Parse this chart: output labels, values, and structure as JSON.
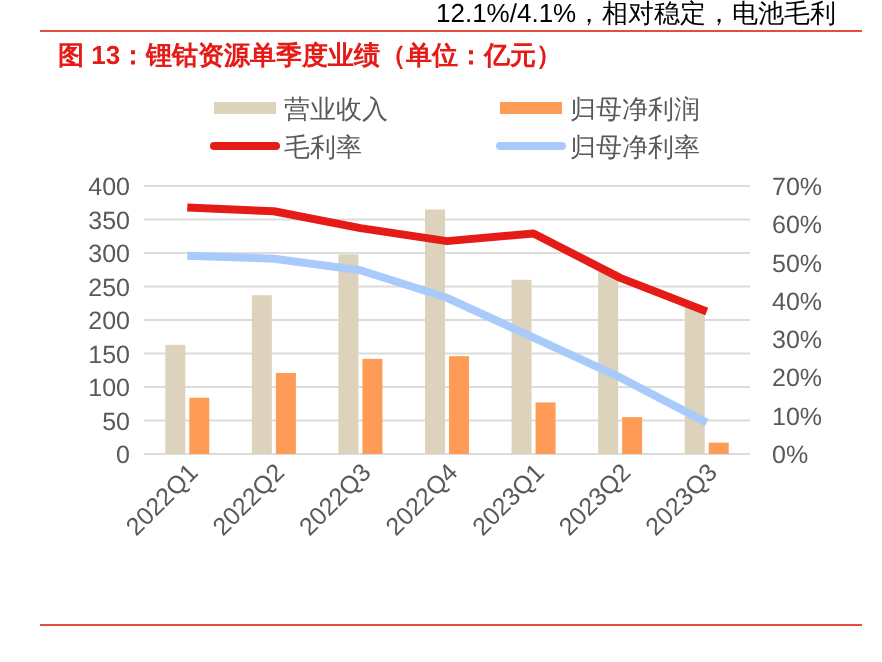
{
  "chart_data": {
    "type": "bar",
    "title": "图 13：锂钴资源单季度业绩（单位：亿元）",
    "annotations": [
      "12.1%/4.1%，相对稳定，电池毛利"
    ],
    "categories": [
      "2022Q1",
      "2022Q2",
      "2022Q3",
      "2022Q4",
      "2023Q1",
      "2023Q2",
      "2023Q3"
    ],
    "series": [
      {
        "name": "营业收入",
        "color": "#ddd3bc",
        "values": [
          163,
          237,
          298,
          365,
          260,
          273,
          220
        ]
      },
      {
        "name": "归母净利润",
        "color": "#fd9b57",
        "values": [
          84,
          121,
          142,
          146,
          77,
          55,
          17
        ]
      },
      {
        "name": "毛利率",
        "type": "line",
        "axis": "y2",
        "color": "#e41b17",
        "values": [
          64.4,
          63.4,
          59,
          55.6,
          57.6,
          46,
          37.2
        ]
      },
      {
        "name": "归母净利率",
        "type": "line",
        "axis": "y2",
        "color": "#a8cbfb",
        "values": [
          51.8,
          51,
          48,
          40.8,
          30.4,
          20,
          8.2
        ]
      }
    ],
    "ylim": [
      0,
      400
    ],
    "yticks": [
      0,
      50,
      100,
      150,
      200,
      250,
      300,
      350,
      400
    ],
    "y2lim": [
      0,
      70
    ],
    "y2ticks": [
      {
        "value": 0,
        "label": "0%"
      },
      {
        "value": 10,
        "label": "10%"
      },
      {
        "value": 20,
        "label": "20%"
      },
      {
        "value": 30,
        "label": "30%"
      },
      {
        "value": 40,
        "label": "40%"
      },
      {
        "value": 50,
        "label": "50%"
      },
      {
        "value": 60,
        "label": "60%"
      },
      {
        "value": 70,
        "label": "70%"
      }
    ],
    "grid": "y",
    "legend": "top"
  }
}
